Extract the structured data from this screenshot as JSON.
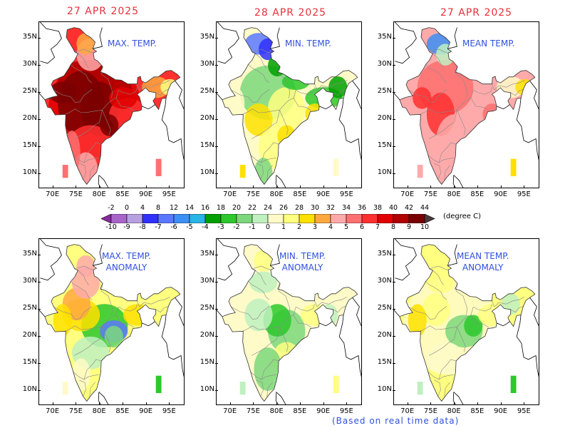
{
  "colorbar": {
    "abs_ticks": [
      "-2",
      "0",
      "4",
      "8",
      "12",
      "14",
      "16",
      "18",
      "20",
      "22",
      "24",
      "26",
      "28",
      "30",
      "32",
      "34",
      "36",
      "38",
      "40",
      "42",
      "44"
    ],
    "anom_ticks": [
      "-10",
      "-9",
      "-8",
      "-7",
      "-6",
      "-5",
      "-4",
      "-3",
      "-2",
      "-1",
      "0",
      "1",
      "2",
      "3",
      "4",
      "5",
      "6",
      "7",
      "8",
      "9",
      "10"
    ],
    "colors": [
      "#8a2aa0",
      "#a865c8",
      "#b7a0e0",
      "#3030ff",
      "#5a78ff",
      "#3c8ff5",
      "#28b4e6",
      "#00a000",
      "#2dc82d",
      "#7dd77d",
      "#bff0c0",
      "#fffac8",
      "#ffff80",
      "#ffe000",
      "#ffa840",
      "#ffaaaa",
      "#ff7070",
      "#ff3030",
      "#e00000",
      "#b00000",
      "#7a0000",
      "#4a3a3a"
    ],
    "unit": "(degree C)"
  },
  "panels": [
    {
      "date": "27 APR 2025",
      "label": [
        "MAX. TEMP."
      ]
    },
    {
      "date": "28 APR 2025",
      "label": [
        "MIN. TEMP."
      ]
    },
    {
      "date": "27 APR 2025",
      "label": [
        "MEAN TEMP."
      ]
    },
    {
      "date": "",
      "label": [
        "MAX. TEMP.",
        "ANOMALY"
      ]
    },
    {
      "date": "",
      "label": [
        "MIN. TEMP.",
        "ANOMALY"
      ]
    },
    {
      "date": "",
      "label": [
        "MEAN TEMP.",
        "ANOMALY"
      ]
    }
  ],
  "axes": {
    "lat_labels": [
      "35N",
      "30N",
      "25N",
      "20N",
      "15N",
      "10N"
    ],
    "lon_labels": [
      "70E",
      "75E",
      "80E",
      "85E",
      "90E",
      "95E"
    ]
  },
  "footer": "(Based on real time data)"
}
